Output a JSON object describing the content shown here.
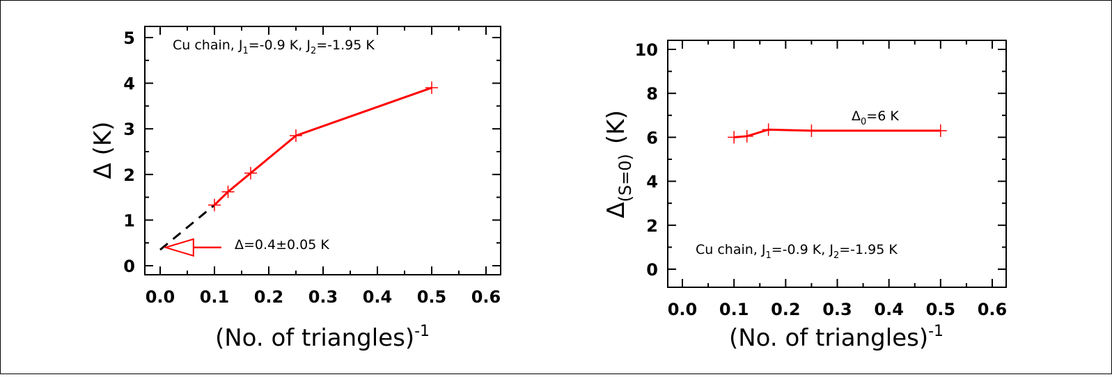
{
  "chart_data": [
    {
      "type": "line",
      "xlabel": "(No. of triangles)",
      "xlabel_sup": "-1",
      "ylabel": "Δ (K)",
      "xlim": [
        0.0,
        0.6
      ],
      "ylim": [
        0,
        5
      ],
      "xticks": [
        "0.0",
        "0.1",
        "0.2",
        "0.3",
        "0.4",
        "0.5",
        "0.6"
      ],
      "yticks": [
        "0",
        "1",
        "2",
        "3",
        "4",
        "5"
      ],
      "line_color": "#ff0000",
      "extrapolation_color": "#000000",
      "annotation_color": "#ff0000",
      "series": [
        {
          "x": [
            0.1,
            0.125,
            0.1667,
            0.25,
            0.5
          ],
          "y": [
            1.33,
            1.62,
            2.03,
            2.85,
            3.9
          ]
        }
      ],
      "extrapolation": {
        "x": [
          0.0,
          0.1
        ],
        "y": [
          0.35,
          1.33
        ],
        "style": "dashed"
      },
      "legend_text": {
        "pre": "Cu chain, J",
        "sub1": "1",
        "mid": "=-0.9  K,  J",
        "sub2": "2",
        "post": "=-1.95  K"
      },
      "annotation": {
        "text": "Δ=0.4±0.05  K",
        "arrow_to": [
          0.01,
          0.4
        ]
      }
    },
    {
      "type": "line",
      "xlabel": "(No. of triangles)",
      "xlabel_sup": "-1",
      "ylabel_main": "Δ",
      "ylabel_sub": "(S=0)",
      "ylabel_unit": "(K)",
      "xlim": [
        0.0,
        0.6
      ],
      "ylim": [
        0,
        10
      ],
      "xticks": [
        "0.0",
        "0.1",
        "0.2",
        "0.3",
        "0.4",
        "0.5",
        "0.6"
      ],
      "yticks": [
        "0",
        "2",
        "4",
        "6",
        "8",
        "10"
      ],
      "line_color": "#ff0000",
      "series": [
        {
          "x": [
            0.1,
            0.125,
            0.1667,
            0.25,
            0.5
          ],
          "y": [
            6.0,
            6.05,
            6.35,
            6.3,
            6.3
          ]
        }
      ],
      "legend_text": {
        "pre": "Cu chain, J",
        "sub1": "1",
        "mid": "=-0.9  K,  J",
        "sub2": "2",
        "post": "=-1.95  K"
      },
      "annotation": {
        "pre": "Δ",
        "sub": "0",
        "post": "=6  K"
      }
    }
  ]
}
